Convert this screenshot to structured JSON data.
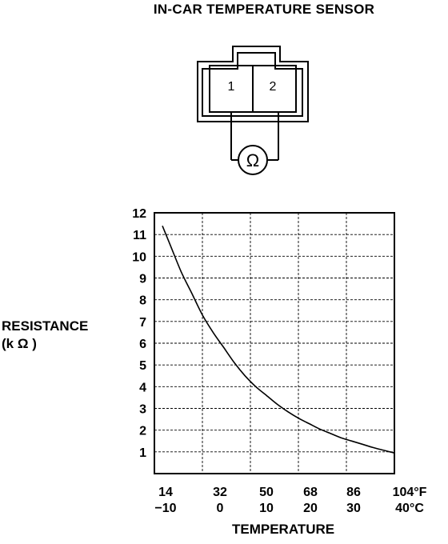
{
  "title": "IN-CAR TEMPERATURE SENSOR",
  "connector": {
    "pin1": "1",
    "pin2": "2",
    "meter_symbol": "Ω"
  },
  "chart_data": {
    "type": "line",
    "ylabel_line1": "RESISTANCE",
    "ylabel_line2": "(k Ω )",
    "xlabel": "TEMPERATURE",
    "ylim": [
      0,
      12
    ],
    "xlim": [
      14,
      104
    ],
    "y_ticks": [
      "12",
      "11",
      "10",
      "9",
      "8",
      "7",
      "6",
      "5",
      "4",
      "3",
      "2",
      "1"
    ],
    "x_ticks_f": [
      "14",
      "32",
      "50",
      "68",
      "86",
      "104°F"
    ],
    "x_ticks_c": [
      "−10",
      "0",
      "10",
      "20",
      "30",
      "40°C"
    ],
    "grid": true,
    "series": [
      {
        "x": [
          17,
          20,
          24,
          28,
          32,
          36,
          40,
          44,
          48,
          52,
          56,
          60,
          64,
          68,
          72,
          76,
          80,
          84,
          88,
          92,
          96,
          100,
          104
        ],
        "y": [
          11.4,
          10.5,
          9.3,
          8.3,
          7.3,
          6.5,
          5.8,
          5.1,
          4.5,
          4.0,
          3.6,
          3.2,
          2.85,
          2.55,
          2.3,
          2.05,
          1.85,
          1.65,
          1.5,
          1.35,
          1.2,
          1.07,
          0.95
        ]
      }
    ]
  }
}
